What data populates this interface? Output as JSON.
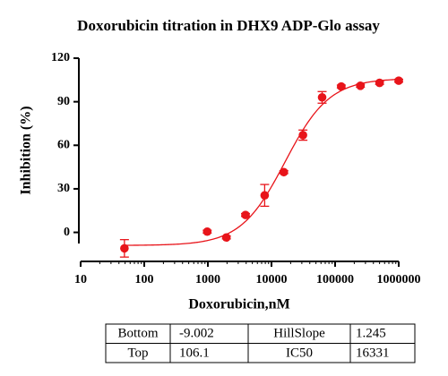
{
  "chart_data": {
    "type": "scatter",
    "title": "Doxorubicin titration in DHX9 ADP-Glo assay",
    "x_label": "Doxorubicin,nM",
    "y_label": "Inhibition (%)",
    "x_log": true,
    "color": "#e8141a",
    "x": [
      48.8,
      977,
      1953,
      3906,
      7813,
      15625,
      31250,
      62500,
      125000,
      250000,
      500000,
      1000000
    ],
    "values": [
      -11,
      0.5,
      -3.5,
      12,
      25.5,
      41.5,
      67,
      93,
      100.5,
      101,
      103,
      104.5
    ],
    "errors": [
      6,
      1,
      1,
      1,
      7.5,
      1,
      3.5,
      4,
      1,
      1,
      1,
      1
    ],
    "xlim": [
      10,
      1000000
    ],
    "xticks": [
      10,
      100,
      1000,
      10000,
      100000,
      1000000
    ],
    "ylim": [
      -20,
      120
    ],
    "yticks": [
      0,
      30,
      60,
      90,
      120
    ],
    "fit": {
      "bottom_label": "Bottom",
      "bottom": -9.002,
      "top_label": "Top",
      "top": 106.1,
      "hillslope_label": "HillSlope",
      "hillslope": 1.245,
      "ic50_label": "IC50",
      "ic50": 16331
    }
  }
}
